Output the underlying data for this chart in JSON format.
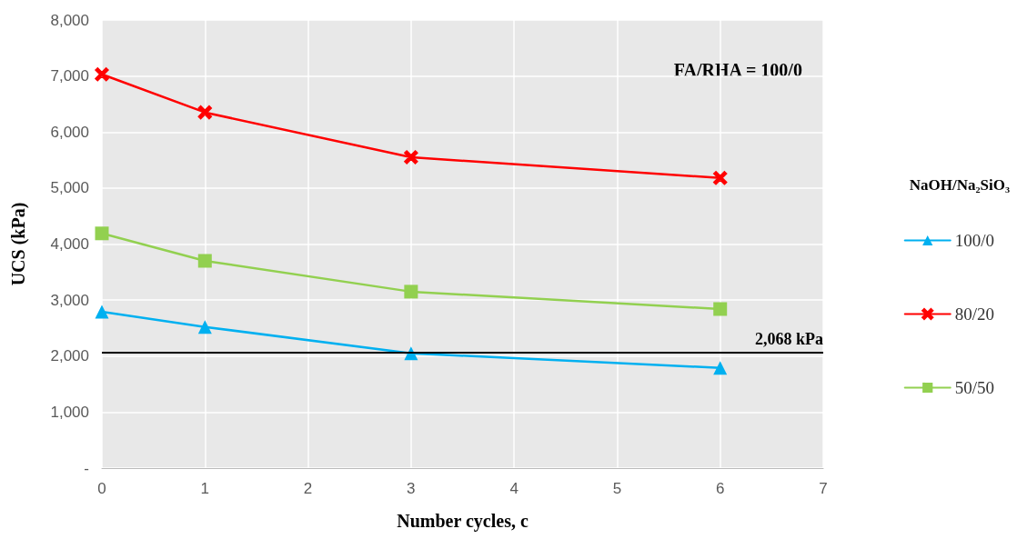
{
  "chart_data": {
    "type": "line",
    "xlabel": "Number cycles, c",
    "ylabel": "UCS (kPa)",
    "legend_title": "NaOH/Na₂SiO₃",
    "annotations": [
      "FA/RHA = 100/0"
    ],
    "x": [
      0,
      1,
      3,
      6
    ],
    "series": [
      {
        "name": "100/0",
        "color": "#00b0f0",
        "marker": "triangle",
        "values": [
          2790,
          2520,
          2050,
          1790
        ]
      },
      {
        "name": "80/20",
        "color": "#ff0000",
        "marker": "cross",
        "values": [
          7030,
          6350,
          5550,
          5180
        ]
      },
      {
        "name": "50/50",
        "color": "#92d050",
        "marker": "square",
        "values": [
          4190,
          3700,
          3150,
          2840
        ]
      }
    ],
    "xlim": [
      0,
      7
    ],
    "xticks": [
      0,
      1,
      2,
      3,
      4,
      5,
      6,
      7
    ],
    "ylim": [
      0,
      8000
    ],
    "yticks": [
      {
        "value": 0,
        "label": "-"
      },
      {
        "value": 1000,
        "label": "1,000"
      },
      {
        "value": 2000,
        "label": "2,000"
      },
      {
        "value": 3000,
        "label": "3,000"
      },
      {
        "value": 4000,
        "label": "4,000"
      },
      {
        "value": 5000,
        "label": "5,000"
      },
      {
        "value": 6000,
        "label": "6,000"
      },
      {
        "value": 7000,
        "label": "7,000"
      },
      {
        "value": 8000,
        "label": "8,000"
      }
    ],
    "ref_lines": [
      {
        "axis": "y",
        "value": 2068,
        "label": "2,068 kPa",
        "color": "#000000"
      }
    ],
    "grid": true,
    "legend": "right",
    "line_style": "solid"
  }
}
